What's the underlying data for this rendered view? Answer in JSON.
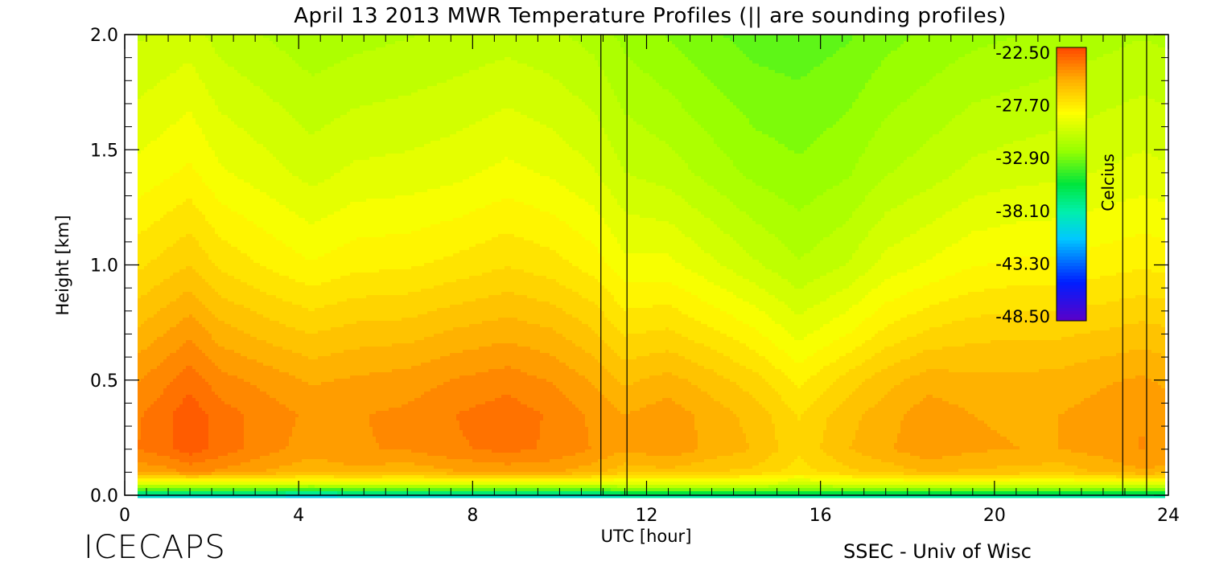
{
  "chart_data": {
    "type": "heatmap",
    "title": "April 13 2013 MWR Temperature Profiles (||  are sounding profiles)",
    "xlabel": "UTC [hour]",
    "ylabel": "Height [km]",
    "xlim": [
      0,
      24
    ],
    "ylim": [
      0.0,
      2.0
    ],
    "x_ticks": [
      "0",
      "4",
      "8",
      "12",
      "16",
      "20",
      "24"
    ],
    "y_ticks": [
      "0.0",
      "0.5",
      "1.0",
      "1.5",
      "2.0"
    ],
    "colorbar": {
      "label": "Celcius",
      "ticks": [
        "-22.50",
        "-27.70",
        "-32.90",
        "-38.10",
        "-43.30",
        "-48.50"
      ],
      "range": [
        -48.5,
        -22.5
      ]
    },
    "sounding_times_utc": [
      10.95,
      11.55,
      22.95,
      23.5
    ],
    "data_start_hour": 0.3,
    "data_end_hour": 23.85,
    "heights_km": [
      0.0,
      0.02,
      0.05,
      0.1,
      0.2,
      0.35,
      0.5,
      0.7,
      1.0,
      1.4,
      2.0
    ],
    "times_utc": [
      0.3,
      0.9,
      1.5,
      2.2,
      3.3,
      4.3,
      5.3,
      6.5,
      7.6,
      8.8,
      9.8,
      10.8,
      11.5,
      12.5,
      13.5,
      14.5,
      15.5,
      16.6,
      17.5,
      18.5,
      19.5,
      20.6,
      21.5,
      22.5,
      23.4,
      23.85
    ],
    "temperature_c": [
      [
        -39,
        -39,
        -39,
        -39,
        -39,
        -40,
        -39,
        -39,
        -39,
        -39,
        -39,
        -39,
        -38,
        -38,
        -38,
        -38,
        -38,
        -38,
        -38,
        -38,
        -38,
        -38,
        -38,
        -38,
        -38,
        -38
      ],
      [
        -34,
        -34,
        -34,
        -34,
        -34,
        -35,
        -34,
        -34,
        -34,
        -34,
        -34,
        -34,
        -33,
        -33,
        -33,
        -33,
        -33,
        -33,
        -33,
        -33,
        -33,
        -33,
        -33,
        -33,
        -33,
        -33
      ],
      [
        -29.5,
        -29.5,
        -29.5,
        -29.5,
        -29.5,
        -29.5,
        -29.5,
        -29.5,
        -29.5,
        -29.5,
        -29.5,
        -29.5,
        -29.5,
        -29.5,
        -29.5,
        -29.5,
        -30,
        -29.5,
        -29.5,
        -29.5,
        -29.5,
        -29.5,
        -29.5,
        -29.5,
        -29.5,
        -29.5
      ],
      [
        -25,
        -24.8,
        -24.3,
        -24.6,
        -25.2,
        -25.6,
        -25.3,
        -25.6,
        -25.2,
        -24.9,
        -25,
        -25.5,
        -26.2,
        -26,
        -26.4,
        -26.6,
        -27.4,
        -26.6,
        -26.2,
        -25.7,
        -25.9,
        -26,
        -26.2,
        -25.6,
        -25.2,
        -25.3
      ],
      [
        -23.8,
        -23.4,
        -22.8,
        -23.4,
        -24.2,
        -24.8,
        -24.5,
        -24.4,
        -23.9,
        -23.6,
        -23.9,
        -24.5,
        -25,
        -24.6,
        -25.3,
        -25.8,
        -26.9,
        -25.8,
        -25.2,
        -24.6,
        -25,
        -25.1,
        -25.1,
        -24.8,
        -24.4,
        -24.6
      ],
      [
        -23.9,
        -23.4,
        -22.7,
        -23.5,
        -24.1,
        -24.6,
        -24.5,
        -24.3,
        -23.8,
        -23.4,
        -23.9,
        -24.6,
        -25.1,
        -24.7,
        -25.4,
        -26,
        -27.1,
        -26,
        -25.4,
        -24.7,
        -25.1,
        -25.2,
        -25.1,
        -24.8,
        -24.5,
        -24.7
      ],
      [
        -24.5,
        -24,
        -23.4,
        -24.2,
        -24.7,
        -25.2,
        -25,
        -24.8,
        -24.4,
        -24.1,
        -24.5,
        -25.2,
        -25.9,
        -25.5,
        -26.1,
        -26.8,
        -27.9,
        -26.8,
        -26,
        -25.4,
        -25.6,
        -25.6,
        -25.5,
        -25.2,
        -25,
        -25.2
      ],
      [
        -25.6,
        -25.1,
        -24.6,
        -25.4,
        -26,
        -26.4,
        -26.1,
        -26,
        -25.6,
        -25.3,
        -25.6,
        -26.3,
        -27.1,
        -26.9,
        -27.5,
        -28.2,
        -29.2,
        -28.4,
        -27.5,
        -26.9,
        -26.6,
        -26.5,
        -26.5,
        -26.3,
        -26.1,
        -26.2
      ],
      [
        -27.2,
        -26.8,
        -26.4,
        -27.2,
        -27.8,
        -28.3,
        -27.9,
        -27.8,
        -27.5,
        -27.1,
        -27.4,
        -28,
        -28.8,
        -28.8,
        -29.5,
        -30.2,
        -30.9,
        -30.3,
        -29.4,
        -28.9,
        -28.4,
        -28.2,
        -28.2,
        -28,
        -27.8,
        -27.9
      ],
      [
        -28.8,
        -28.5,
        -28.2,
        -28.9,
        -29.4,
        -29.9,
        -29.5,
        -29.4,
        -29.2,
        -28.8,
        -29.1,
        -29.6,
        -30.3,
        -30.6,
        -31.2,
        -31.8,
        -32.1,
        -31.7,
        -31,
        -30.6,
        -30.1,
        -29.9,
        -29.8,
        -29.6,
        -29.4,
        -29.5
      ],
      [
        -30.4,
        -30.2,
        -30,
        -30.6,
        -31,
        -31.4,
        -31.2,
        -31,
        -30.8,
        -30.6,
        -30.8,
        -31.2,
        -31.8,
        -32.3,
        -32.8,
        -33.2,
        -33.3,
        -33,
        -32.5,
        -32.1,
        -31.8,
        -31.6,
        -31.4,
        -31.2,
        -31,
        -31.1
      ]
    ]
  },
  "branding": {
    "left": "ICECAPS",
    "right": "SSEC - Univ of Wisc"
  },
  "colors": {
    "background": "#ffffff",
    "axis": "#000000",
    "sounding_line": "#000000"
  }
}
